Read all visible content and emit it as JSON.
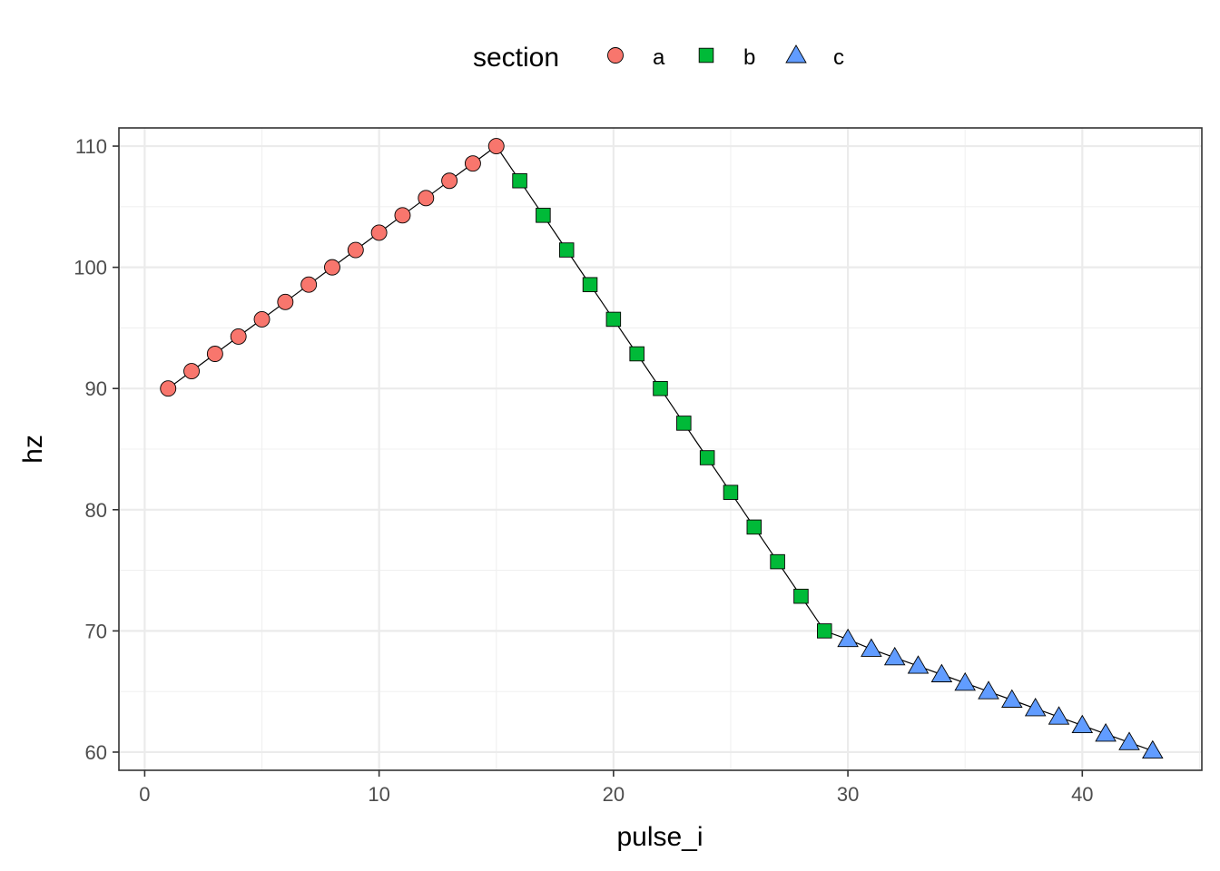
{
  "chart_data": {
    "type": "scatter",
    "xlabel": "pulse_i",
    "ylabel": "hz",
    "xlim": [
      -1.1,
      45.1
    ],
    "ylim": [
      58.5,
      111.5
    ],
    "x_ticks": [
      0,
      10,
      20,
      30,
      40
    ],
    "y_ticks": [
      60,
      70,
      80,
      90,
      100,
      110
    ],
    "x_minor": [
      5,
      15,
      25,
      35,
      45
    ],
    "y_minor": [
      65,
      75,
      85,
      95,
      105
    ],
    "grid": true,
    "connecting_line": true,
    "legend": {
      "title": "section",
      "position": "top",
      "entries": [
        {
          "label": "a",
          "shape": "circle",
          "color": "#F8766D"
        },
        {
          "label": "b",
          "shape": "square",
          "color": "#00BA38"
        },
        {
          "label": "c",
          "shape": "triangle",
          "color": "#619CFF"
        }
      ]
    },
    "series": [
      {
        "name": "a",
        "shape": "circle",
        "color": "#F8766D",
        "x": [
          1,
          2,
          3,
          4,
          5,
          6,
          7,
          8,
          9,
          10,
          11,
          12,
          13,
          14,
          15
        ],
        "y": [
          90,
          91.43,
          92.86,
          94.29,
          95.71,
          97.14,
          98.57,
          100,
          101.43,
          102.86,
          104.29,
          105.71,
          107.14,
          108.57,
          110
        ]
      },
      {
        "name": "b",
        "shape": "square",
        "color": "#00BA38",
        "x": [
          16,
          17,
          18,
          19,
          20,
          21,
          22,
          23,
          24,
          25,
          26,
          27,
          28,
          29
        ],
        "y": [
          107.14,
          104.29,
          101.43,
          98.57,
          95.71,
          92.86,
          90,
          87.14,
          84.29,
          81.43,
          78.57,
          75.71,
          72.86,
          70
        ]
      },
      {
        "name": "c",
        "shape": "triangle",
        "color": "#619CFF",
        "x": [
          30,
          31,
          32,
          33,
          34,
          35,
          36,
          37,
          38,
          39,
          40,
          41,
          42,
          43
        ],
        "y": [
          69.3,
          68.5,
          67.8,
          67.1,
          66.4,
          65.7,
          65.0,
          64.3,
          63.6,
          62.9,
          62.2,
          61.5,
          60.8,
          60.1
        ]
      }
    ]
  }
}
